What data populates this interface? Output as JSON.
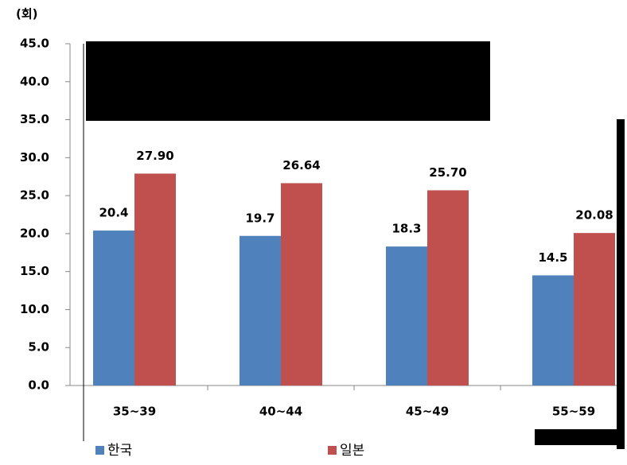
{
  "chart_data": {
    "type": "bar",
    "y_unit_label": "(회)",
    "categories": [
      "35~39",
      "40~44",
      "45~49",
      "55~59"
    ],
    "series": [
      {
        "name": "한국",
        "color": "#4f81bd",
        "values": [
          20.4,
          19.7,
          18.3,
          14.5
        ]
      },
      {
        "name": "일본",
        "color": "#c0504d",
        "values": [
          27.9,
          26.64,
          25.7,
          20.08
        ],
        "value_labels": [
          "27.90",
          "26.64",
          "25.70",
          "20.08"
        ]
      }
    ],
    "ylim": [
      0,
      45
    ],
    "yticks": [
      {
        "value": 0,
        "label": "0.0"
      },
      {
        "value": 5,
        "label": "5.0"
      },
      {
        "value": 10,
        "label": "10.0"
      },
      {
        "value": 15,
        "label": "15.0"
      },
      {
        "value": 20,
        "label": "20.0"
      },
      {
        "value": 25,
        "label": "25.0"
      },
      {
        "value": 30,
        "label": "30.0"
      },
      {
        "value": 35,
        "label": "35.0"
      },
      {
        "value": 40,
        "label": "40.0"
      },
      {
        "value": 45,
        "label": "45.0"
      }
    ],
    "grid": false,
    "legend": "bottom"
  }
}
